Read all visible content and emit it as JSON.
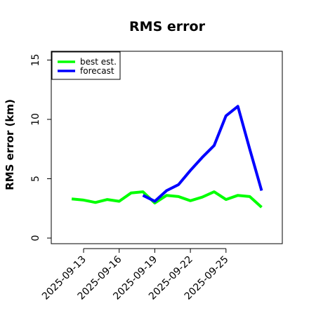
{
  "chart_data": {
    "type": "line",
    "title": "RMS error",
    "xlabel": "",
    "ylabel": "RMS error (km)",
    "ylim": [
      0,
      15
    ],
    "yticks": [
      "0",
      "5",
      "10",
      "15"
    ],
    "xticks": [
      "2025-09-13",
      "2025-09-16",
      "2025-09-19",
      "2025-09-22",
      "2025-09-25"
    ],
    "grid": false,
    "legend": {
      "placement": "top-left"
    },
    "series": [
      {
        "name": "best est.",
        "color": "#00ff00",
        "points": [
          [
            "2025-09-12",
            3.3
          ],
          [
            "2025-09-13",
            3.2
          ],
          [
            "2025-09-14",
            3.0
          ],
          [
            "2025-09-15",
            3.25
          ],
          [
            "2025-09-16",
            3.1
          ],
          [
            "2025-09-17",
            3.8
          ],
          [
            "2025-09-18",
            3.9
          ],
          [
            "2025-09-19",
            2.95
          ],
          [
            "2025-09-20",
            3.6
          ],
          [
            "2025-09-21",
            3.5
          ],
          [
            "2025-09-22",
            3.15
          ],
          [
            "2025-09-23",
            3.45
          ],
          [
            "2025-09-24",
            3.9
          ],
          [
            "2025-09-25",
            3.25
          ],
          [
            "2025-09-26",
            3.6
          ],
          [
            "2025-09-27",
            3.5
          ],
          [
            "2025-09-28",
            2.6
          ]
        ]
      },
      {
        "name": "forecast",
        "color": "#0000ff",
        "points": [
          [
            "2025-09-18",
            3.6
          ],
          [
            "2025-09-19",
            3.1
          ],
          [
            "2025-09-20",
            4.0
          ],
          [
            "2025-09-21",
            4.5
          ],
          [
            "2025-09-22",
            5.7
          ],
          [
            "2025-09-23",
            6.8
          ],
          [
            "2025-09-24",
            7.8
          ],
          [
            "2025-09-25",
            10.3
          ],
          [
            "2025-09-26",
            11.1
          ],
          [
            "2025-09-27",
            7.5
          ],
          [
            "2025-09-28",
            4.0
          ]
        ]
      }
    ]
  }
}
